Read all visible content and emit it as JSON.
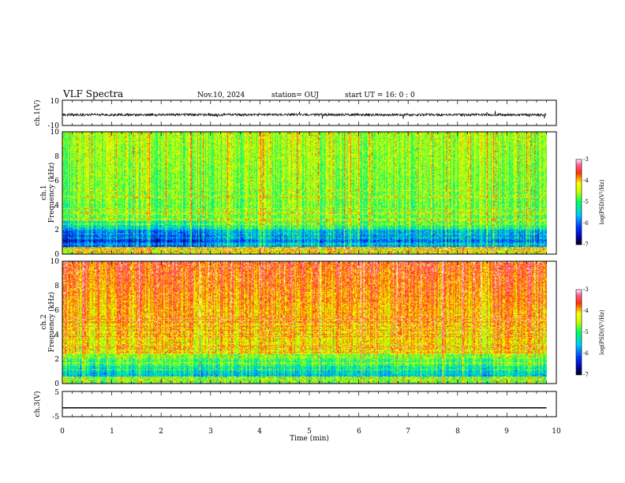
{
  "header": {
    "title": "VLF Spectra",
    "date": "Nov.10, 2024",
    "station": "station= OUJ",
    "start": "start  UT =  16: 0  : 0"
  },
  "chart_data": [
    {
      "type": "line",
      "name": "ch1-waveform",
      "ylabel": "ch.1(V)",
      "ylim": [
        -10,
        10
      ],
      "yticks": [
        "10",
        "-10"
      ],
      "baseline": -1.5,
      "noise_amplitude": 1.0
    },
    {
      "type": "heatmap",
      "name": "ch1-spectrogram",
      "ylabel": "Frequency (kHz)",
      "channel": "ch.1",
      "ylim": [
        0,
        10
      ],
      "yticks": [
        "0",
        "2",
        "4",
        "6",
        "8",
        "10"
      ],
      "colorbar": {
        "label": "log(PSD)(V²/Hz)",
        "ticks": [
          "-3",
          "-4",
          "-5",
          "-6",
          "-7"
        ],
        "range": [
          -7,
          -3
        ]
      }
    },
    {
      "type": "heatmap",
      "name": "ch2-spectrogram",
      "ylabel": "Frequency (kHz)",
      "channel": "ch.2",
      "ylim": [
        0,
        10
      ],
      "yticks": [
        "0",
        "2",
        "4",
        "6",
        "8",
        "10"
      ],
      "colorbar": {
        "label": "log(PSD)(V²/Hz)",
        "ticks": [
          "-3",
          "-4",
          "-5",
          "-6",
          "-7"
        ],
        "range": [
          -7,
          -3
        ]
      }
    },
    {
      "type": "line",
      "name": "ch3-waveform",
      "ylabel": "ch.3(V)",
      "ylim": [
        -5,
        5
      ],
      "yticks": [
        "5",
        "0",
        "-5"
      ],
      "baseline": -1.5
    }
  ],
  "xaxis": {
    "label": "Time  (min)",
    "ticks": [
      "0",
      "1",
      "2",
      "3",
      "4",
      "5",
      "6",
      "7",
      "8",
      "9",
      "10"
    ],
    "xlim": [
      0,
      10
    ],
    "data_end": 9.8
  }
}
